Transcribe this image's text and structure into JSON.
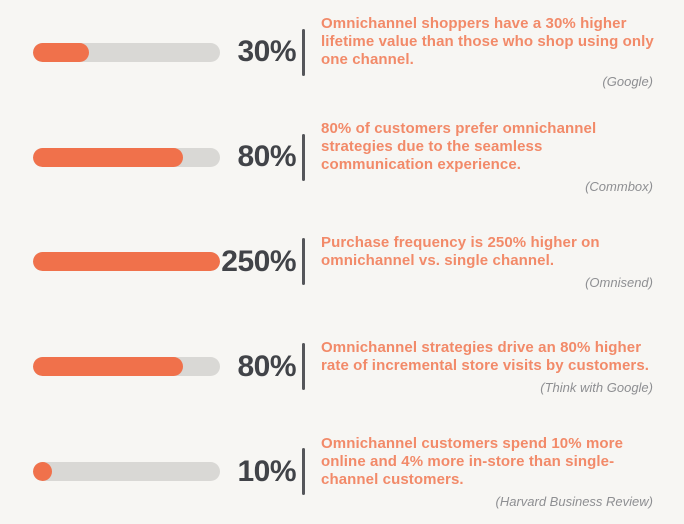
{
  "colors": {
    "background": "#F7F6F3",
    "bar_fill": "#F0714B",
    "bar_track": "#D9D8D5",
    "percent_text": "#414348",
    "divider": "#55565A",
    "description_text": "#F28A69",
    "source_text": "#8E8F92"
  },
  "rows": [
    {
      "pct": "30%",
      "fill_pct": 30,
      "text": "Omnichannel shoppers have a 30% higher lifetime value than those who shop using only one channel.",
      "source": "(Google)"
    },
    {
      "pct": "80%",
      "fill_pct": 80,
      "text": "80% of customers prefer omnichannel strategies due to the seamless communication experience.",
      "source": "(Commbox)"
    },
    {
      "pct": "250%",
      "fill_pct": 100,
      "text": "Purchase frequency is 250% higher on omnichannel vs. single channel.",
      "source": "(Omnisend)"
    },
    {
      "pct": "80%",
      "fill_pct": 80,
      "text": "Omnichannel strategies drive an 80% higher rate of incremental store visits by customers.",
      "source": "(Think with Google)"
    },
    {
      "pct": "10%",
      "fill_pct": 10,
      "text": "Omnichannel customers spend 10% more online and 4% more in-store than single-channel customers.",
      "source": "(Harvard Business Review)"
    }
  ],
  "chart_data": {
    "type": "bar",
    "orientation": "horizontal",
    "title": "",
    "xlabel": "",
    "ylabel": "",
    "grid": false,
    "legend_position": "none",
    "categories": [
      "Google",
      "Commbox",
      "Omnisend",
      "Think with Google",
      "Harvard Business Review"
    ],
    "values": [
      30,
      80,
      250,
      80,
      10
    ],
    "value_labels": [
      "30%",
      "80%",
      "250%",
      "80%",
      "10%"
    ],
    "bar_fill_percent_of_track": [
      30,
      80,
      100,
      80,
      10
    ],
    "annotations": [
      "Omnichannel shoppers have a 30% higher lifetime value than those who shop using only one channel. (Google)",
      "80% of customers prefer omnichannel strategies due to the seamless communication experience. (Commbox)",
      "Purchase frequency is 250% higher on omnichannel vs. single channel. (Omnisend)",
      "Omnichannel strategies drive an 80% higher rate of incremental store visits by customers. (Think with Google)",
      "Omnichannel customers spend 10% more online and 4% more in-store than single-channel customers. (Harvard Business Review)"
    ]
  }
}
